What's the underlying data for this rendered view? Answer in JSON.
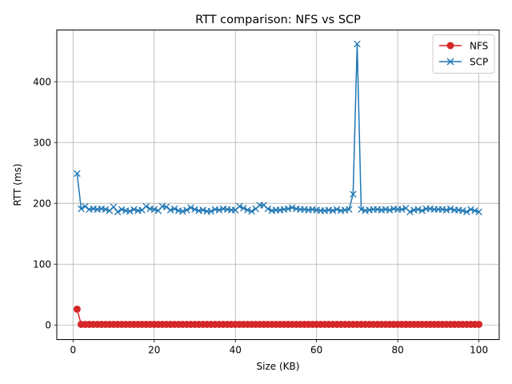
{
  "chart_data": {
    "type": "line",
    "title": "RTT comparison: NFS vs SCP",
    "xlabel": "Size (KB)",
    "ylabel": "RTT (ms)",
    "xlim": [
      -4,
      105
    ],
    "ylim": [
      -24,
      485
    ],
    "xticks": [
      0,
      20,
      40,
      60,
      80,
      100
    ],
    "yticks": [
      0,
      100,
      200,
      300,
      400
    ],
    "grid": true,
    "legend_position": "top-right",
    "x": [
      1,
      2,
      3,
      4,
      5,
      6,
      7,
      8,
      9,
      10,
      11,
      12,
      13,
      14,
      15,
      16,
      17,
      18,
      19,
      20,
      21,
      22,
      23,
      24,
      25,
      26,
      27,
      28,
      29,
      30,
      31,
      32,
      33,
      34,
      35,
      36,
      37,
      38,
      39,
      40,
      41,
      42,
      43,
      44,
      45,
      46,
      47,
      48,
      49,
      50,
      51,
      52,
      53,
      54,
      55,
      56,
      57,
      58,
      59,
      60,
      61,
      62,
      63,
      64,
      65,
      66,
      67,
      68,
      69,
      70,
      71,
      72,
      73,
      74,
      75,
      76,
      77,
      78,
      79,
      80,
      81,
      82,
      83,
      84,
      85,
      86,
      87,
      88,
      89,
      90,
      91,
      92,
      93,
      94,
      95,
      96,
      97,
      98,
      99,
      100
    ],
    "series": [
      {
        "name": "NFS",
        "color": "#d62728",
        "marker": "circle",
        "values": [
          26,
          1,
          1,
          1,
          1,
          1,
          1,
          1,
          1,
          1,
          1,
          1,
          1,
          1,
          1,
          1,
          1,
          1,
          1,
          1,
          1,
          1,
          1,
          1,
          1,
          1,
          1,
          1,
          1,
          1,
          1,
          1,
          1,
          1,
          1,
          1,
          1,
          1,
          1,
          1,
          1,
          1,
          1,
          1,
          1,
          1,
          1,
          1,
          1,
          1,
          1,
          1,
          1,
          1,
          1,
          1,
          1,
          1,
          1,
          1,
          1,
          1,
          1,
          1,
          1,
          1,
          1,
          1,
          1,
          1,
          1,
          1,
          1,
          1,
          1,
          1,
          1,
          1,
          1,
          1,
          1,
          1,
          1,
          1,
          1,
          1,
          1,
          1,
          1,
          1,
          1,
          1,
          1,
          1,
          1,
          1,
          1,
          1,
          1,
          1
        ]
      },
      {
        "name": "SCP",
        "color": "#1f77b4",
        "marker": "x",
        "values": [
          249,
          191,
          195,
          190,
          191,
          190,
          191,
          190,
          188,
          194,
          186,
          190,
          188,
          187,
          190,
          188,
          189,
          195,
          191,
          190,
          188,
          195,
          194,
          189,
          191,
          188,
          187,
          189,
          193,
          190,
          188,
          189,
          187,
          187,
          190,
          189,
          191,
          190,
          189,
          189,
          195,
          192,
          189,
          187,
          191,
          197,
          197,
          191,
          188,
          189,
          189,
          190,
          191,
          193,
          191,
          190,
          190,
          189,
          190,
          189,
          188,
          188,
          189,
          188,
          190,
          188,
          189,
          190,
          215,
          462,
          190,
          188,
          189,
          190,
          190,
          189,
          190,
          189,
          191,
          190,
          190,
          192,
          186,
          189,
          190,
          188,
          191,
          191,
          190,
          190,
          190,
          189,
          191,
          189,
          189,
          188,
          186,
          190,
          188,
          186
        ]
      }
    ]
  }
}
